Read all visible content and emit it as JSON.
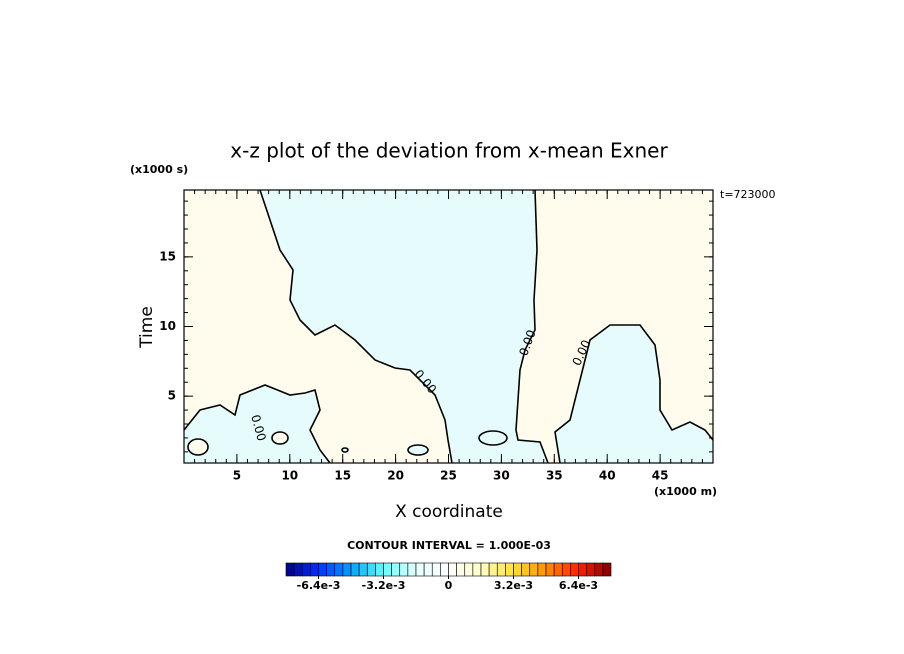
{
  "chart_data": {
    "type": "contour",
    "title": "x-z plot of the deviation from x-mean Exner",
    "x_label": "X coordinate",
    "x_unit": "(x1000 m)",
    "y_label": "Time",
    "y_unit": "(x1000 s)",
    "time_label": "t=723000",
    "contour_interval_label": "CONTOUR INTERVAL = 1.000E-03",
    "contour_labels": [
      "0.00",
      "0.00",
      "0.00",
      "0.00"
    ],
    "xlim": [
      0,
      50
    ],
    "xticks": [
      5,
      10,
      15,
      20,
      25,
      30,
      35,
      40,
      45
    ],
    "ylim": [
      0.2,
      19.8
    ],
    "yticks": [
      5,
      10,
      15
    ],
    "clim": [
      -0.008,
      0.008
    ],
    "cticks": [
      {
        "value": -0.0064,
        "label": "-6.4e-3"
      },
      {
        "value": -0.0032,
        "label": "-3.2e-3"
      },
      0,
      {
        "value": 0.0032,
        "label": "3.2e-3"
      },
      {
        "value": 0.0064,
        "label": "6.4e-3"
      }
    ],
    "colormap": [
      "#00007f",
      "#0030ff",
      "#00a0ff",
      "#60ffff",
      "#e6ffff",
      "#ffffff",
      "#ffffc8",
      "#ffe030",
      "#ff9000",
      "#ff2000",
      "#800000"
    ]
  }
}
